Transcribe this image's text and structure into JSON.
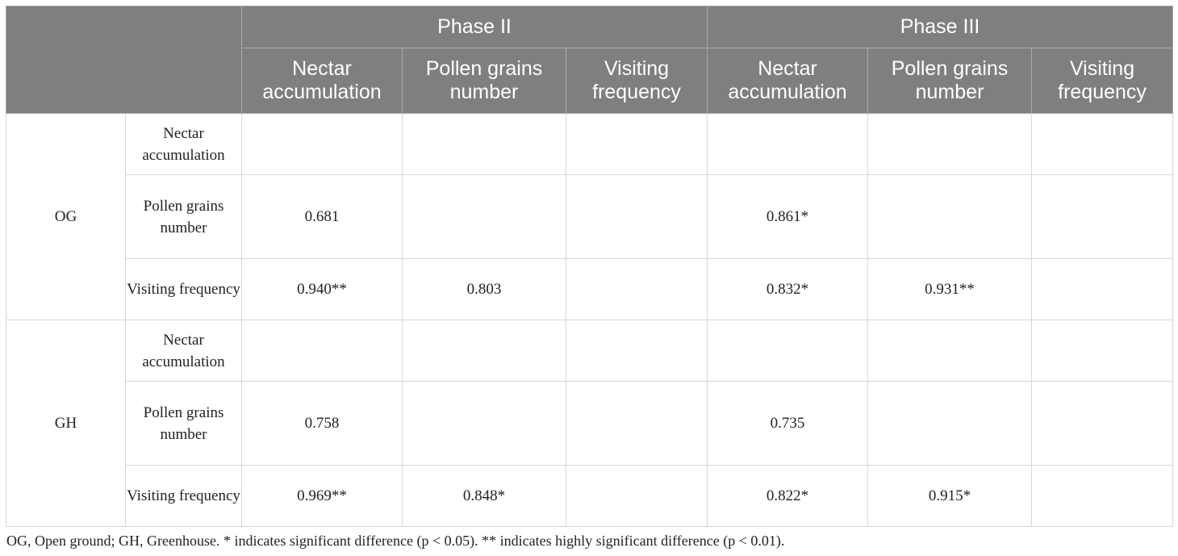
{
  "header": {
    "phases": [
      "Phase II",
      "Phase III"
    ],
    "columns": [
      "Nectar accumulation",
      "Pollen grains number",
      "Visiting frequency"
    ]
  },
  "groups": [
    {
      "label": "OG",
      "rows": [
        {
          "label": "Nectar accumulation",
          "values": [
            "",
            "",
            "",
            "",
            "",
            ""
          ]
        },
        {
          "label": "Pollen grains number",
          "values": [
            "0.681",
            "",
            "",
            "0.861*",
            "",
            ""
          ]
        },
        {
          "label": "Visiting frequency",
          "values": [
            "0.940**",
            "0.803",
            "",
            "0.832*",
            "0.931**",
            ""
          ]
        }
      ]
    },
    {
      "label": "GH",
      "rows": [
        {
          "label": "Nectar accumulation",
          "values": [
            "",
            "",
            "",
            "",
            "",
            ""
          ]
        },
        {
          "label": "Pollen grains number",
          "values": [
            "0.758",
            "",
            "",
            "0.735",
            "",
            ""
          ]
        },
        {
          "label": "Visiting frequency",
          "values": [
            "0.969**",
            "0.848*",
            "",
            "0.822*",
            "0.915*",
            ""
          ]
        }
      ]
    }
  ],
  "footnote": "OG, Open ground; GH, Greenhouse. * indicates significant difference (p < 0.05). ** indicates highly significant difference (p < 0.01)."
}
